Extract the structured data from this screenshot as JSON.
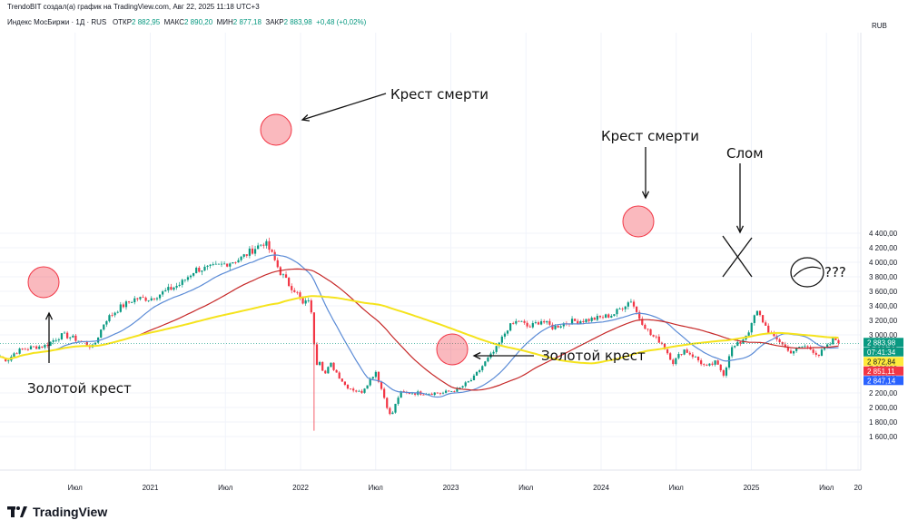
{
  "header": {
    "attribution": "TrendoBIT создал(а) график на TradingView.com, Авг 22, 2025 11:18 UTC+3",
    "symbol": "Индекс МосБиржи · 1Д · RUS",
    "open_label": "ОТКР",
    "open_value": "2 882,95",
    "high_label": "МАКС",
    "high_value": "2 890,20",
    "low_label": "МИН",
    "low_value": "2 877,18",
    "close_label": "ЗАКР",
    "close_value": "2 883,98",
    "change": "+0,48 (+0,02%)",
    "currency": "RUB"
  },
  "brand": {
    "name": "TradingView"
  },
  "chart_data": {
    "type": "line",
    "subtype": "candlestick-with-moving-averages",
    "y_ticks": [
      "4 400,00",
      "4 200,00",
      "4 000,00",
      "3 800,00",
      "3 600,00",
      "3 400,00",
      "3 200,00",
      "3 000,00",
      "2 800,00",
      "2 600,00",
      "2 400,00",
      "2 200,00",
      "2 000,00",
      "1 800,00",
      "1 600,00"
    ],
    "ylim": [
      1500,
      4500
    ],
    "x_ticks": [
      "Июл",
      "2021",
      "Июл",
      "2022",
      "Июл",
      "2023",
      "Июл",
      "2024",
      "Июл",
      "2025",
      "Июл",
      "20"
    ],
    "x_tick_t": [
      0.5,
      1.0,
      1.5,
      2.0,
      2.5,
      3.0,
      3.5,
      4.0,
      4.5,
      5.0,
      5.5,
      5.71
    ],
    "x_range_t": [
      0.0,
      5.71
    ],
    "price_tags": [
      {
        "label": "2 883,98",
        "value": 2883.98,
        "color": "#089981"
      },
      {
        "label": "07:41:34",
        "value": 2883.98,
        "color": "#089981"
      },
      {
        "label": "2 872,84",
        "value": 2872.84,
        "color": "#ffeb3b"
      },
      {
        "label": "2 851,11",
        "value": 2851.11,
        "color": "#f23645"
      },
      {
        "label": "2 847,14",
        "value": 2847.14,
        "color": "#2962ff"
      }
    ],
    "price_keypoints": [
      [
        0.0,
        2700
      ],
      [
        0.05,
        2650
      ],
      [
        0.1,
        2760
      ],
      [
        0.15,
        2800
      ],
      [
        0.22,
        2830
      ],
      [
        0.3,
        2850
      ],
      [
        0.38,
        2960
      ],
      [
        0.42,
        3000
      ],
      [
        0.48,
        2960
      ],
      [
        0.55,
        2900
      ],
      [
        0.62,
        2830
      ],
      [
        0.7,
        3200
      ],
      [
        0.8,
        3380
      ],
      [
        0.9,
        3500
      ],
      [
        1.0,
        3500
      ],
      [
        1.1,
        3600
      ],
      [
        1.2,
        3700
      ],
      [
        1.3,
        3900
      ],
      [
        1.4,
        3920
      ],
      [
        1.5,
        3980
      ],
      [
        1.6,
        4050
      ],
      [
        1.7,
        4200
      ],
      [
        1.76,
        4280
      ],
      [
        1.8,
        4150
      ],
      [
        1.86,
        3880
      ],
      [
        1.92,
        3700
      ],
      [
        1.97,
        3600
      ],
      [
        2.02,
        3400
      ],
      [
        2.06,
        3520
      ],
      [
        2.09,
        2900
      ],
      [
        2.1,
        2550
      ],
      [
        2.12,
        2700
      ],
      [
        2.16,
        2450
      ],
      [
        2.2,
        2600
      ],
      [
        2.3,
        2300
      ],
      [
        2.4,
        2200
      ],
      [
        2.5,
        2500
      ],
      [
        2.6,
        1860
      ],
      [
        2.66,
        2200
      ],
      [
        2.75,
        2200
      ],
      [
        2.85,
        2200
      ],
      [
        2.95,
        2200
      ],
      [
        3.05,
        2250
      ],
      [
        3.15,
        2400
      ],
      [
        3.22,
        2600
      ],
      [
        3.3,
        2800
      ],
      [
        3.38,
        3100
      ],
      [
        3.45,
        3200
      ],
      [
        3.52,
        3100
      ],
      [
        3.6,
        3200
      ],
      [
        3.68,
        3100
      ],
      [
        3.78,
        3180
      ],
      [
        3.88,
        3200
      ],
      [
        3.98,
        3230
      ],
      [
        4.08,
        3280
      ],
      [
        4.15,
        3400
      ],
      [
        4.2,
        3480
      ],
      [
        4.25,
        3250
      ],
      [
        4.33,
        3000
      ],
      [
        4.4,
        2900
      ],
      [
        4.48,
        2620
      ],
      [
        4.55,
        2800
      ],
      [
        4.62,
        2700
      ],
      [
        4.7,
        2550
      ],
      [
        4.76,
        2620
      ],
      [
        4.82,
        2450
      ],
      [
        4.86,
        2800
      ],
      [
        4.93,
        2900
      ],
      [
        4.98,
        3050
      ],
      [
        5.0,
        3120
      ],
      [
        5.03,
        3330
      ],
      [
        5.06,
        3250
      ],
      [
        5.1,
        3100
      ],
      [
        5.15,
        2950
      ],
      [
        5.2,
        2900
      ],
      [
        5.25,
        2760
      ],
      [
        5.3,
        2800
      ],
      [
        5.35,
        2850
      ],
      [
        5.4,
        2800
      ],
      [
        5.45,
        2720
      ],
      [
        5.48,
        2800
      ],
      [
        5.52,
        2860
      ],
      [
        5.55,
        2960
      ],
      [
        5.58,
        2884
      ]
    ],
    "moving_averages": [
      {
        "color": "#5b8bd6",
        "period": 20
      },
      {
        "color": "#c62828",
        "period": 50
      },
      {
        "color": "#f5e31d",
        "period": 100
      }
    ],
    "annotations": [
      {
        "text": "Золотой крест",
        "kind": "golden-cross-left"
      },
      {
        "text": "Крест смерти",
        "kind": "death-cross-2022"
      },
      {
        "text": "Золотой крест",
        "kind": "golden-cross-2023"
      },
      {
        "text": "Крест смерти",
        "kind": "death-cross-2024"
      },
      {
        "text": "Слом",
        "kind": "break-2025"
      },
      {
        "text": "???",
        "kind": "question"
      }
    ]
  }
}
